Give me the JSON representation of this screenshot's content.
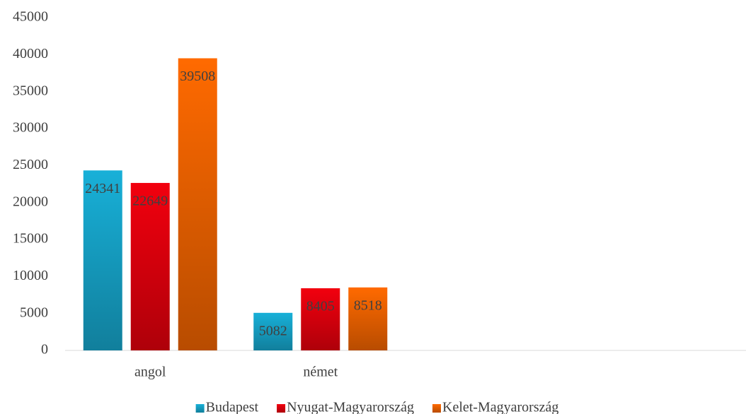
{
  "chart_data": {
    "type": "bar",
    "categories": [
      "angol",
      "német",
      null,
      null
    ],
    "series": [
      {
        "name": "Budapest",
        "color": "#18b0d8",
        "values": [
          24341,
          5082,
          null,
          null
        ]
      },
      {
        "name": "Nyugat-Magyarország",
        "color": "#f2000e",
        "values": [
          22649,
          8405,
          null,
          null
        ]
      },
      {
        "name": "Kelet-Magyarország",
        "color": "#ff6a00",
        "values": [
          39508,
          8518,
          null,
          null
        ]
      }
    ],
    "ylim": [
      0,
      45000
    ],
    "yticks": [
      0,
      5000,
      10000,
      15000,
      20000,
      25000,
      30000,
      35000,
      40000,
      45000
    ],
    "grid": false,
    "legend": "bottom"
  }
}
